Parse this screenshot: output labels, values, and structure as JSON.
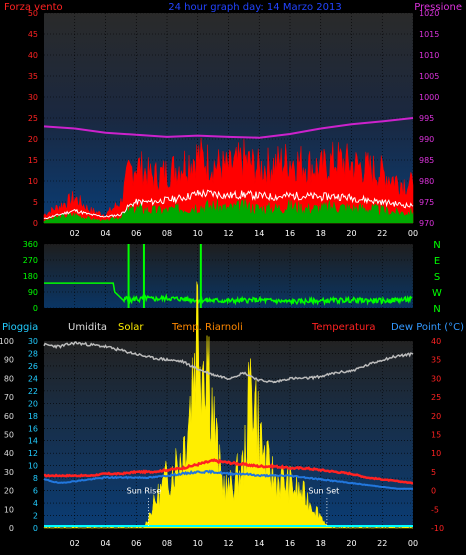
{
  "chart_data": [
    {
      "type": "line",
      "panel": "wind-pressure",
      "title": "24 hour graph day: 14 Marzo 2013",
      "left_label": "Forza vento",
      "right_label": "Pressione",
      "x_ticks": [
        "02",
        "04",
        "06",
        "08",
        "10",
        "12",
        "14",
        "16",
        "18",
        "20",
        "22",
        "00"
      ],
      "left_ylim": [
        0,
        50
      ],
      "left_ticks": [
        "0",
        "5",
        "10",
        "15",
        "20",
        "25",
        "30",
        "35",
        "40",
        "45",
        "50"
      ],
      "right_ylim": [
        970,
        1020
      ],
      "right_ticks": [
        "970",
        "975",
        "980",
        "985",
        "990",
        "995",
        "1000",
        "1005",
        "1010",
        "1015",
        "1020"
      ],
      "colors": {
        "gust": "#ff0000",
        "wind": "#00aa00",
        "avg": "#ffffff",
        "pressure": "#cc22cc"
      },
      "series": {
        "pressure": {
          "x": [
            0,
            2,
            4,
            6,
            8,
            10,
            12,
            14,
            16,
            18,
            20,
            22,
            24
          ],
          "y": [
            993,
            992.5,
            991.5,
            991,
            990.5,
            990.8,
            990.5,
            990.3,
            991.2,
            992.5,
            993.5,
            994.2,
            995
          ]
        },
        "gust": {
          "x": [
            0,
            1,
            2,
            3,
            4,
            5,
            5.5,
            6,
            7,
            8,
            9,
            10,
            10.5,
            11,
            12,
            13,
            14,
            15,
            16,
            17,
            18,
            19,
            20,
            21,
            22,
            23,
            24
          ],
          "y": [
            2,
            4,
            6,
            3,
            2,
            5,
            12,
            14,
            11,
            12,
            14,
            16,
            15,
            14,
            13,
            15,
            13,
            14,
            15,
            14,
            13,
            15,
            14,
            13,
            12,
            10,
            9
          ]
        },
        "wind": {
          "x": [
            0,
            1,
            2,
            3,
            4,
            5,
            5.5,
            6,
            7,
            8,
            9,
            10,
            11,
            12,
            13,
            14,
            15,
            16,
            17,
            18,
            19,
            20,
            21,
            22,
            23,
            24
          ],
          "y": [
            0.5,
            1.5,
            2,
            1,
            0.5,
            1.5,
            3,
            3.5,
            3,
            3,
            3.5,
            4,
            4,
            3.5,
            4,
            3.5,
            3.5,
            4,
            3.5,
            3.5,
            4,
            3.5,
            3.5,
            3,
            2.5,
            2.5
          ]
        },
        "avg": {
          "x": [
            0,
            1,
            2,
            3,
            4,
            5,
            5.5,
            6,
            7,
            8,
            9,
            10,
            11,
            12,
            13,
            14,
            15,
            16,
            17,
            18,
            19,
            20,
            21,
            22,
            23,
            24
          ],
          "y": [
            1,
            2,
            3,
            2,
            1.5,
            2,
            4,
            5,
            5,
            5.5,
            6,
            7,
            7,
            6.5,
            6.8,
            6.5,
            6.2,
            6.5,
            6.4,
            6.2,
            6.4,
            6,
            5.5,
            5,
            4.5,
            4
          ]
        }
      }
    },
    {
      "type": "line",
      "panel": "wind-direction",
      "left_ylim": [
        0,
        360
      ],
      "left_ticks": [
        "0",
        "90",
        "180",
        "270",
        "360"
      ],
      "right_ticks": [
        "N",
        "W",
        "S",
        "E",
        "N"
      ],
      "color": "#00ff00",
      "x": [
        0,
        4.5,
        4.6,
        5.2,
        5.4,
        5.5,
        6,
        6.2,
        6.5,
        7,
        8,
        10,
        12,
        14,
        16,
        18,
        20,
        22,
        24
      ],
      "y": [
        140,
        140,
        90,
        40,
        60,
        35,
        55,
        45,
        60,
        50,
        55,
        45,
        40,
        45,
        35,
        40,
        45,
        40,
        50
      ],
      "spikes": [
        5.5,
        6.5,
        10.2
      ]
    },
    {
      "type": "line",
      "panel": "temperature-humidity",
      "labels": {
        "rain": "Pioggia",
        "humidity": "Umidita",
        "solar": "Solar",
        "dew_temp": "Temp. Riarnoli",
        "temperature": "Temperatura",
        "dew_point": "Dew Point (°C)"
      },
      "left_ticks_humidity": [
        "0",
        "10",
        "20",
        "30",
        "40",
        "50",
        "60",
        "70",
        "80",
        "90",
        "100"
      ],
      "left_ticks_rain": [
        "0",
        "2",
        "4",
        "6",
        "8",
        "10",
        "12",
        "14",
        "16",
        "18",
        "20",
        "22",
        "24",
        "26",
        "28",
        "30"
      ],
      "right_ticks_temp": [
        "-10",
        "-5",
        "0",
        "5",
        "10",
        "15",
        "20",
        "25",
        "30",
        "35",
        "40"
      ],
      "annotations": [
        "Sun Rise",
        "Sun Set"
      ],
      "colors": {
        "temp": "#ff2222",
        "dew": "#2277dd",
        "humidity": "#bbbbbb",
        "solar": "#ffee00",
        "rain": "#00ffff"
      },
      "series": {
        "humidity": {
          "x": [
            0,
            1,
            2,
            3,
            4,
            5,
            6,
            7,
            8,
            9,
            10,
            11,
            12,
            13,
            14,
            15,
            16,
            17,
            18,
            19,
            20,
            21,
            22,
            23,
            24
          ],
          "y": [
            98,
            97,
            99,
            98,
            97,
            95,
            93,
            91,
            90,
            89,
            85,
            82,
            80,
            83,
            79,
            78,
            80,
            80,
            81,
            83,
            84,
            87,
            90,
            92,
            93
          ]
        },
        "temp": {
          "x": [
            0,
            1,
            2,
            3,
            4,
            5,
            6,
            7,
            8,
            9,
            10,
            11,
            12,
            13,
            14,
            15,
            16,
            17,
            18,
            19,
            20,
            21,
            22,
            23,
            24
          ],
          "y": [
            4,
            4,
            4,
            4,
            4.5,
            4.5,
            5,
            5,
            5.5,
            6,
            7,
            8,
            7.5,
            7,
            6.5,
            6.5,
            6,
            6,
            5.5,
            5,
            4.5,
            3.5,
            3,
            2.5,
            2
          ]
        },
        "dew": {
          "x": [
            0,
            1,
            2,
            3,
            4,
            5,
            6,
            7,
            8,
            9,
            10,
            11,
            12,
            13,
            14,
            15,
            16,
            17,
            18,
            19,
            20,
            21,
            22,
            23,
            24
          ],
          "y": [
            3,
            2,
            2.5,
            3,
            3.5,
            3.5,
            3.5,
            3.5,
            4,
            4.5,
            5,
            5,
            4.5,
            4.5,
            4,
            4,
            4,
            3.5,
            3,
            2.5,
            2,
            1.5,
            1,
            0.5,
            0.5
          ]
        },
        "solar": {
          "x": [
            0,
            6.5,
            7,
            8,
            9,
            9.5,
            10,
            10.3,
            10.6,
            11,
            11.5,
            12,
            13,
            13.5,
            14,
            14.5,
            15,
            16,
            17,
            18,
            18.5,
            24
          ],
          "y": [
            0,
            0,
            3,
            8,
            12,
            20,
            35,
            28,
            30,
            18,
            8,
            6,
            10,
            25,
            15,
            10,
            8,
            7,
            5,
            2,
            0,
            0
          ]
        }
      }
    }
  ]
}
